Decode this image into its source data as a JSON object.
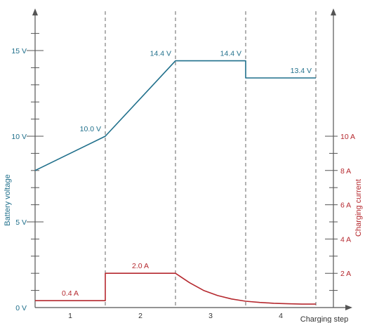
{
  "chart_data": {
    "type": "line",
    "xlabel": "Charging step",
    "categories": [
      "1",
      "2",
      "3",
      "4"
    ],
    "left_axis": {
      "label": "Battery voltage",
      "unit": "V",
      "range": [
        0,
        16.5
      ],
      "ticks": [
        {
          "value": 0,
          "label": "0 V"
        },
        {
          "value": 5,
          "label": "5 V"
        },
        {
          "value": 10,
          "label": "10 V"
        },
        {
          "value": 15,
          "label": "15 V"
        }
      ],
      "color": "#1f6f8b"
    },
    "right_axis": {
      "label": "Charging current",
      "unit": "A",
      "range": [
        0,
        16.5
      ],
      "ticks": [
        {
          "value": 2,
          "label": "2 A"
        },
        {
          "value": 4,
          "label": "4 A"
        },
        {
          "value": 6,
          "label": "6 A"
        },
        {
          "value": 8,
          "label": "8 A"
        },
        {
          "value": 10,
          "label": "10 A"
        }
      ],
      "color": "#b5282e"
    },
    "series": [
      {
        "name": "Battery voltage",
        "axis": "left",
        "color": "#1f6f8b",
        "points": [
          [
            0,
            8.0
          ],
          [
            1,
            10.0
          ],
          [
            2,
            14.4
          ],
          [
            3,
            14.4
          ],
          [
            3,
            13.4
          ],
          [
            4,
            13.4
          ]
        ],
        "labels": [
          {
            "x": 1,
            "y": 10.0,
            "text": "10.0 V"
          },
          {
            "x": 2,
            "y": 14.4,
            "text": "14.4 V"
          },
          {
            "x": 3,
            "y": 14.4,
            "text": "14.4 V"
          },
          {
            "x": 4,
            "y": 13.4,
            "text": "13.4 V"
          }
        ]
      },
      {
        "name": "Charging current",
        "axis": "right",
        "color": "#b5282e",
        "points": [
          [
            0,
            0.4
          ],
          [
            1,
            0.4
          ],
          [
            1,
            2.0
          ],
          [
            2,
            2.0
          ],
          [
            2.2,
            1.45
          ],
          [
            2.4,
            1.0
          ],
          [
            2.6,
            0.7
          ],
          [
            2.8,
            0.5
          ],
          [
            3.0,
            0.37
          ],
          [
            3.2,
            0.3
          ],
          [
            3.4,
            0.25
          ],
          [
            3.6,
            0.22
          ],
          [
            3.8,
            0.2
          ],
          [
            4.0,
            0.2
          ]
        ],
        "labels": [
          {
            "x": 0.5,
            "y": 0.4,
            "text": "0.4 A"
          },
          {
            "x": 1.5,
            "y": 2.0,
            "text": "2.0 A"
          }
        ]
      }
    ],
    "grid": false,
    "legend": "none"
  }
}
